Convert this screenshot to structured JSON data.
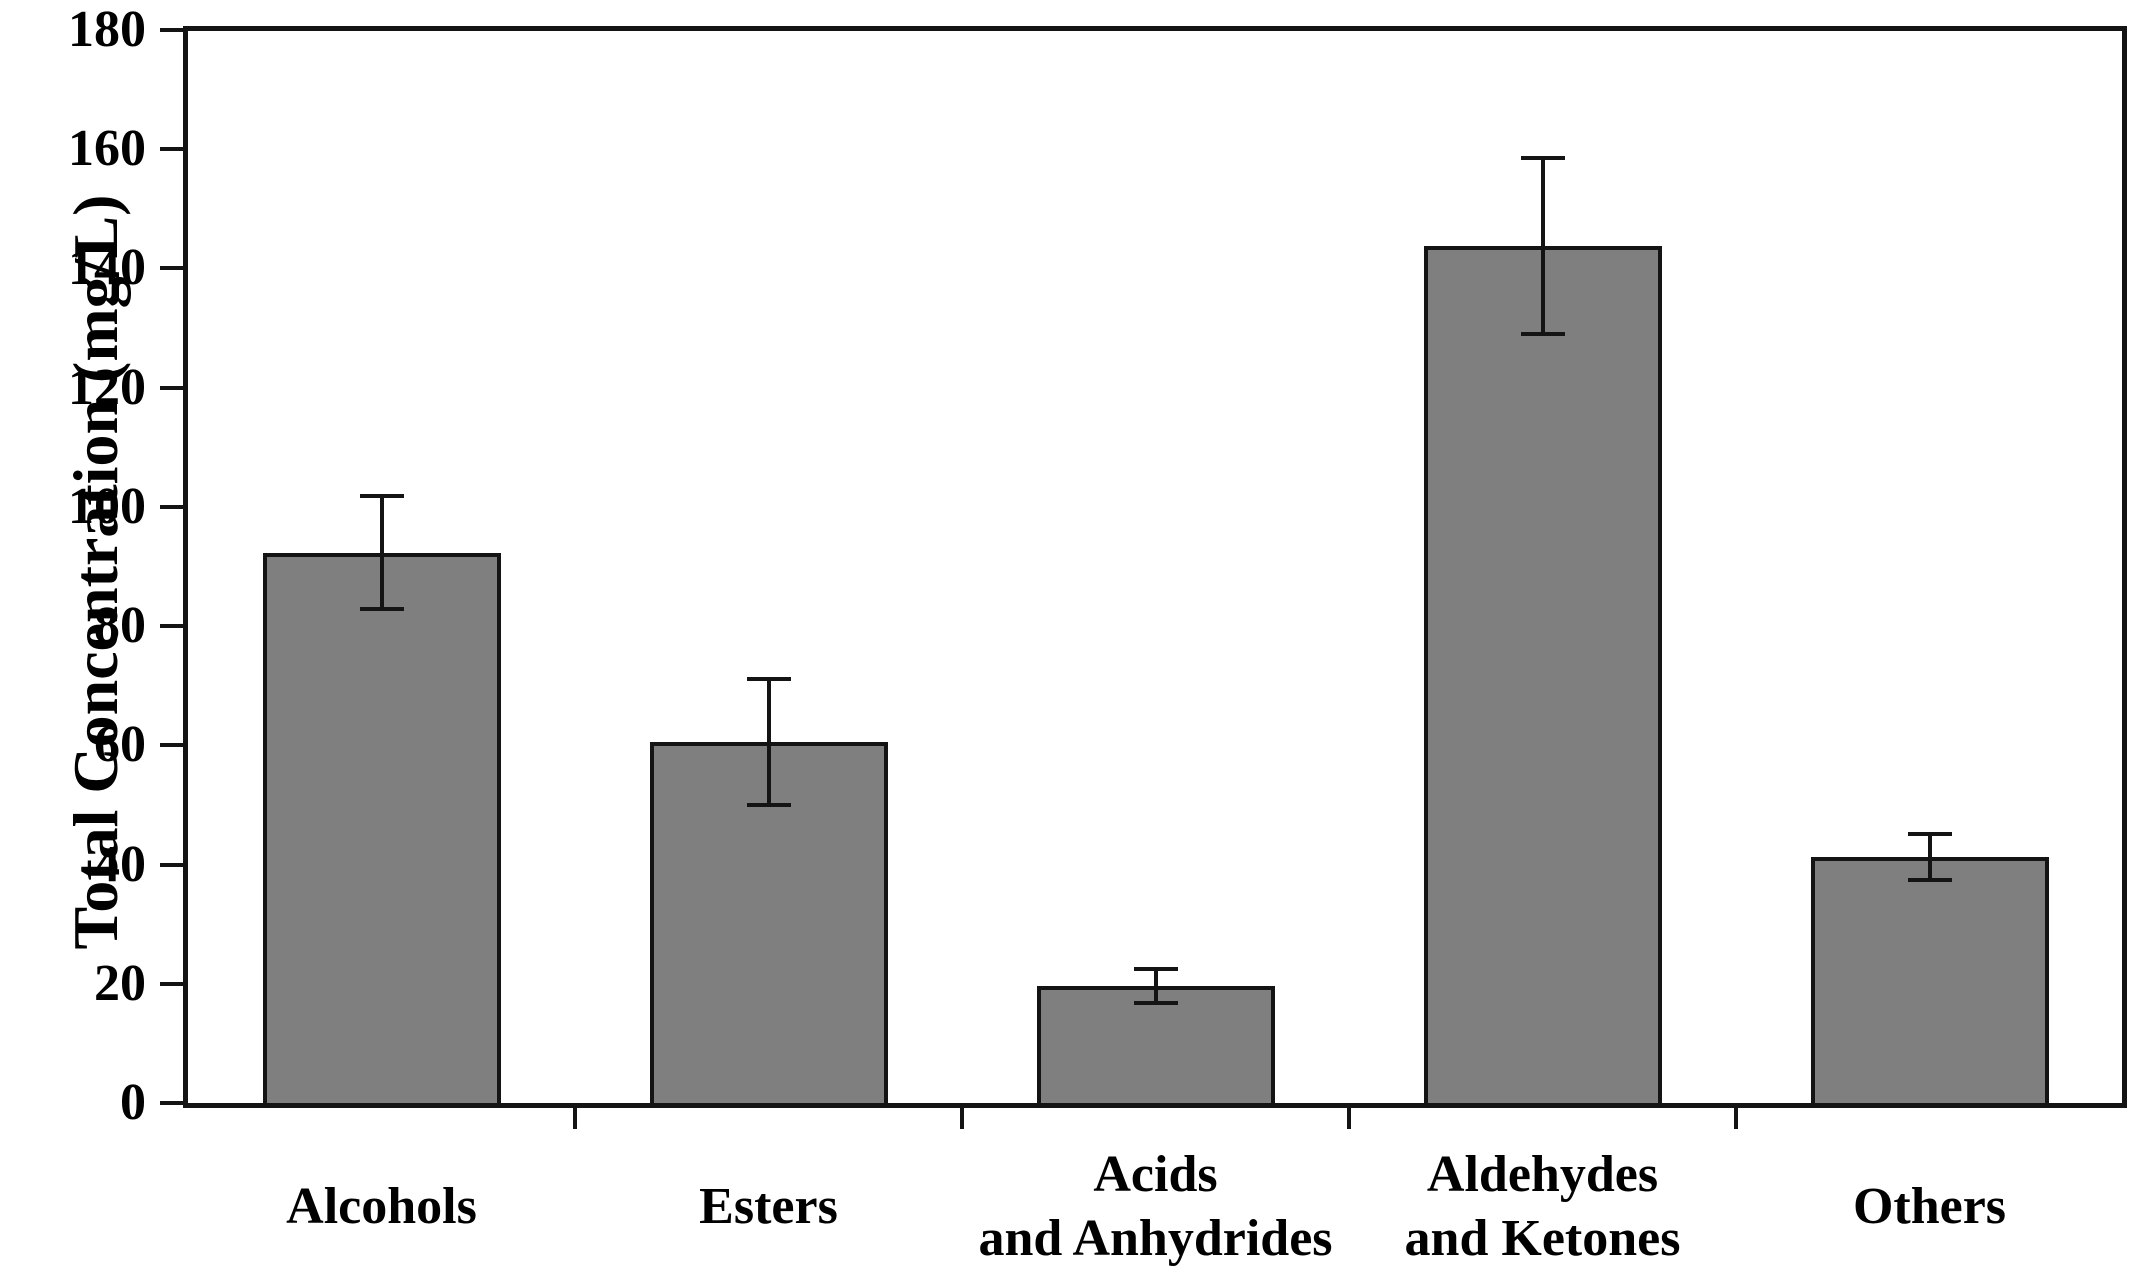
{
  "chart_data": {
    "type": "bar",
    "title": "",
    "xlabel": "",
    "ylabel": "Total Concentration (mg/L)",
    "categories": [
      "Alcohols",
      "Esters",
      "Acids\nand Anhydrides",
      "Aldehydes\nand Ketones",
      "Others"
    ],
    "values": [
      92.3,
      60.6,
      19.6,
      143.8,
      41.3
    ],
    "errors": [
      9.5,
      10.6,
      2.8,
      14.8,
      3.9
    ],
    "error_ranges": [
      [
        82.8,
        101.8
      ],
      [
        50.0,
        71.2
      ],
      [
        16.8,
        22.4
      ],
      [
        129.0,
        158.6
      ],
      [
        37.4,
        45.2
      ]
    ],
    "ylim": [
      0,
      180
    ],
    "yticks": [
      0,
      20,
      40,
      60,
      80,
      100,
      120,
      140,
      160,
      180
    ],
    "grid": false,
    "legend": null,
    "bar_fill_color": "#7f7f7f",
    "bar_edge_color": "#141414",
    "axis_color": "#141414",
    "background_color": "#ffffff"
  }
}
